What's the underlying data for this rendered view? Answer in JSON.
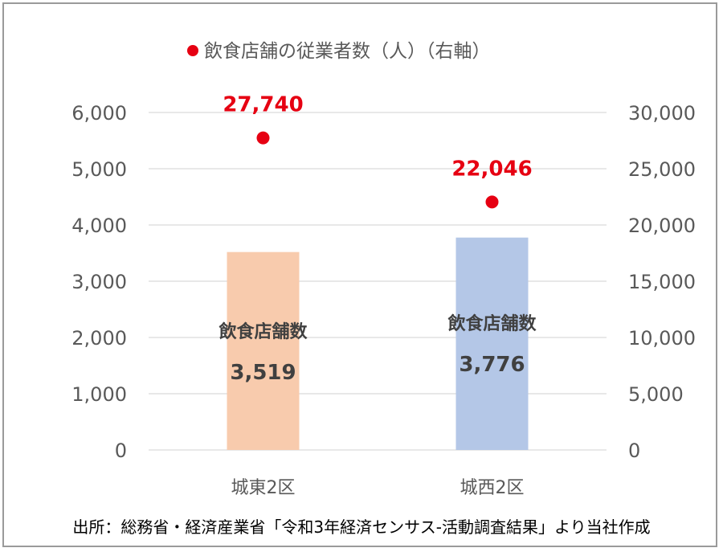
{
  "chart_data": {
    "type": "bar",
    "categories": [
      "城東2区",
      "城西2区"
    ],
    "bar_series": {
      "name": "飲食店舗数",
      "values": [
        3519,
        3776
      ],
      "value_labels": [
        "3,519",
        "3,776"
      ],
      "colors": [
        "#f8cbad",
        "#b4c7e7"
      ]
    },
    "point_series": {
      "name": "飲食店舗の従業者数（人）（右軸）",
      "values": [
        27740,
        22046
      ],
      "value_labels": [
        "27,740",
        "22,046"
      ],
      "color": "#e60012"
    },
    "y_left": {
      "min": 0,
      "max": 6000,
      "ticks": [
        0,
        1000,
        2000,
        3000,
        4000,
        5000,
        6000
      ],
      "tick_labels": [
        "0",
        "1,000",
        "2,000",
        "3,000",
        "4,000",
        "5,000",
        "6,000"
      ]
    },
    "y_right": {
      "min": 0,
      "max": 30000,
      "ticks": [
        0,
        5000,
        10000,
        15000,
        20000,
        25000,
        30000
      ],
      "tick_labels": [
        "0",
        "5,000",
        "10,000",
        "15,000",
        "20,000",
        "25,000",
        "30,000"
      ]
    },
    "grid": true,
    "legend_position": "top",
    "gridline_color": "#d9d9d9"
  },
  "source_note": "出所：総務省・経済産業省「令和3年経済センサス‐活動調査結果」より当社作成"
}
